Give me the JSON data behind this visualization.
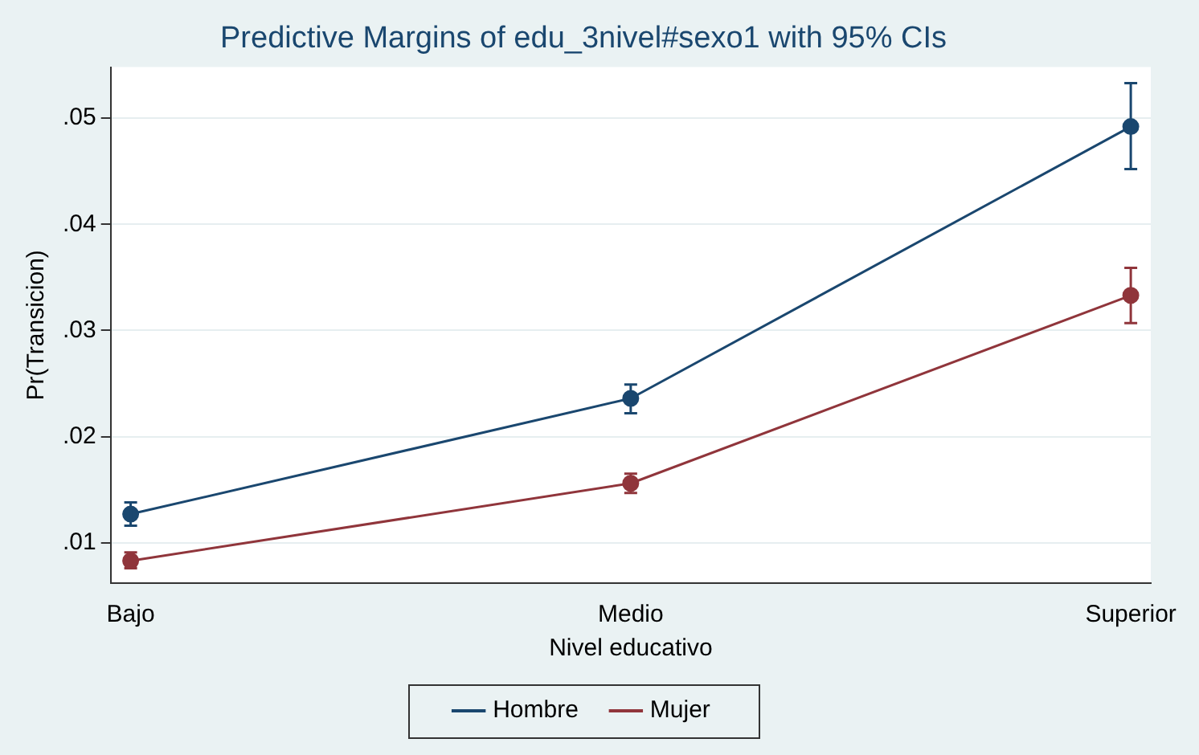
{
  "chart_data": {
    "type": "line",
    "title": "Predictive Margins of edu_3nivel#sexo1 with 95% CIs",
    "xlabel": "Nivel educativo",
    "ylabel": "Pr(Transicion)",
    "categories": [
      "Bajo",
      "Medio",
      "Superior"
    ],
    "series": [
      {
        "name": "Hombre",
        "color": "#1a476f",
        "values": [
          0.0127,
          0.0236,
          0.0492
        ],
        "errors": [
          [
            0.0116,
            0.0138
          ],
          [
            0.0222,
            0.0249
          ],
          [
            0.0452,
            0.0533
          ]
        ]
      },
      {
        "name": "Mujer",
        "color": "#90353b",
        "values": [
          0.0083,
          0.0156,
          0.0333
        ],
        "errors": [
          [
            0.0076,
            0.0091
          ],
          [
            0.0147,
            0.0165
          ],
          [
            0.0307,
            0.0359
          ]
        ]
      }
    ],
    "ylim": [
      0.0062,
      0.0548
    ],
    "yticks": [
      {
        "value": 0.01,
        "label": ".01"
      },
      {
        "value": 0.02,
        "label": ".02"
      },
      {
        "value": 0.03,
        "label": ".03"
      },
      {
        "value": 0.04,
        "label": ".04"
      },
      {
        "value": 0.05,
        "label": ".05"
      }
    ],
    "grid": "y",
    "legend": "bottom",
    "marker": "circle",
    "line_style": "solid"
  }
}
